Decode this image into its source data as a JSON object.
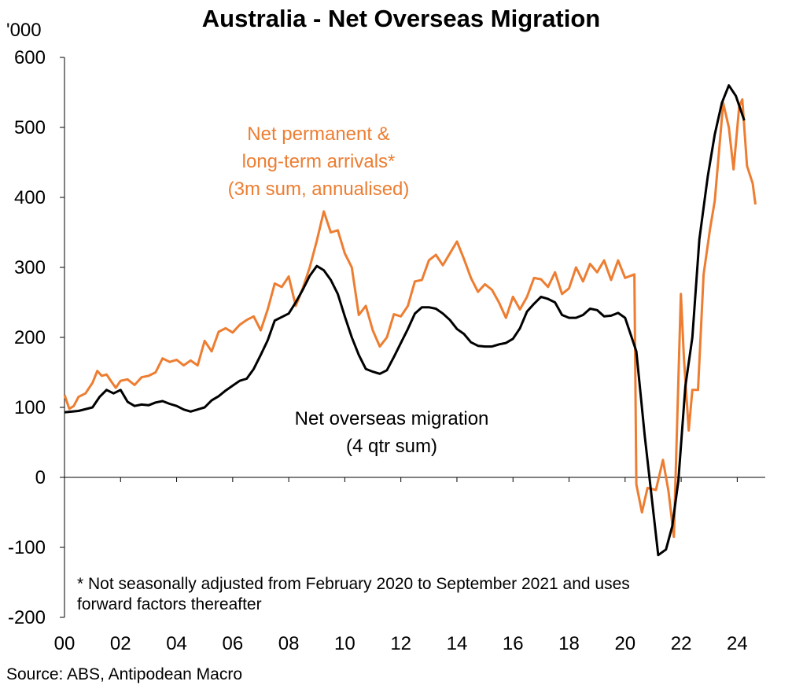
{
  "chart_data": {
    "type": "line",
    "title": "Australia - Net Overseas Migration",
    "y_axis_label": "'000",
    "xlim": [
      2000,
      2025
    ],
    "xticks": [
      {
        "value": 2000,
        "label": "00"
      },
      {
        "value": 2002,
        "label": "02"
      },
      {
        "value": 2004,
        "label": "04"
      },
      {
        "value": 2006,
        "label": "06"
      },
      {
        "value": 2008,
        "label": "08"
      },
      {
        "value": 2010,
        "label": "10"
      },
      {
        "value": 2012,
        "label": "12"
      },
      {
        "value": 2014,
        "label": "14"
      },
      {
        "value": 2016,
        "label": "16"
      },
      {
        "value": 2018,
        "label": "18"
      },
      {
        "value": 2020,
        "label": "20"
      },
      {
        "value": 2022,
        "label": "22"
      },
      {
        "value": 2024,
        "label": "24"
      }
    ],
    "ylim": [
      -200,
      600
    ],
    "yticks": [
      -200,
      -100,
      0,
      100,
      200,
      300,
      400,
      500,
      600
    ],
    "grid": false,
    "series": [
      {
        "name": "Net permanent & long-term arrivals* (3m sum, annualised)",
        "label_lines": [
          "Net permanent &",
          "long-term arrivals*",
          "(3m sum, annualised)"
        ],
        "color": "#ed7d31",
        "x": [
          2000.0,
          2000.17,
          2000.33,
          2000.5,
          2000.75,
          2001.0,
          2001.17,
          2001.33,
          2001.5,
          2001.67,
          2001.83,
          2002.0,
          2002.25,
          2002.5,
          2002.75,
          2003.0,
          2003.25,
          2003.5,
          2003.75,
          2004.0,
          2004.25,
          2004.5,
          2004.75,
          2005.0,
          2005.25,
          2005.5,
          2005.75,
          2006.0,
          2006.25,
          2006.5,
          2006.75,
          2007.0,
          2007.25,
          2007.5,
          2007.75,
          2008.0,
          2008.25,
          2008.5,
          2008.75,
          2009.0,
          2009.25,
          2009.5,
          2009.75,
          2010.0,
          2010.25,
          2010.5,
          2010.75,
          2011.0,
          2011.25,
          2011.5,
          2011.75,
          2012.0,
          2012.25,
          2012.5,
          2012.75,
          2013.0,
          2013.25,
          2013.5,
          2013.75,
          2014.0,
          2014.25,
          2014.5,
          2014.75,
          2015.0,
          2015.25,
          2015.5,
          2015.75,
          2016.0,
          2016.25,
          2016.5,
          2016.75,
          2017.0,
          2017.25,
          2017.5,
          2017.75,
          2018.0,
          2018.25,
          2018.5,
          2018.75,
          2019.0,
          2019.25,
          2019.5,
          2019.75,
          2020.0,
          2020.33,
          2020.4,
          2020.6,
          2020.8,
          2021.1,
          2021.35,
          2021.55,
          2021.74,
          2021.99,
          2022.1,
          2022.27,
          2022.4,
          2022.6,
          2022.8,
          2023.03,
          2023.2,
          2023.5,
          2023.7,
          2023.87,
          2024.07,
          2024.18,
          2024.35,
          2024.55,
          2024.65
        ],
        "values": [
          118,
          98,
          102,
          115,
          120,
          135,
          152,
          145,
          147,
          137,
          128,
          138,
          140,
          132,
          143,
          145,
          150,
          170,
          165,
          168,
          160,
          167,
          160,
          195,
          180,
          208,
          213,
          207,
          218,
          225,
          230,
          210,
          240,
          277,
          272,
          287,
          245,
          270,
          300,
          338,
          380,
          350,
          353,
          320,
          300,
          232,
          245,
          210,
          187,
          200,
          233,
          230,
          245,
          280,
          282,
          310,
          318,
          303,
          320,
          337,
          312,
          285,
          265,
          276,
          268,
          250,
          228,
          258,
          240,
          258,
          285,
          283,
          272,
          293,
          262,
          270,
          300,
          280,
          305,
          293,
          310,
          282,
          310,
          285,
          290,
          -10,
          -50,
          -15,
          -18,
          25,
          -20,
          -85,
          262,
          170,
          67,
          125,
          125,
          290,
          355,
          395,
          535,
          500,
          440,
          530,
          540,
          445,
          420,
          390
        ]
      },
      {
        "name": "Net overseas migration (4 qtr sum)",
        "label_lines": [
          "Net overseas migration",
          "(4 qtr sum)"
        ],
        "color": "#000000",
        "x": [
          2000.0,
          2000.5,
          2001.0,
          2001.25,
          2001.5,
          2001.75,
          2002.0,
          2002.25,
          2002.5,
          2002.75,
          2003.0,
          2003.25,
          2003.5,
          2003.75,
          2004.0,
          2004.25,
          2004.5,
          2005.0,
          2005.25,
          2005.5,
          2005.75,
          2006.0,
          2006.25,
          2006.5,
          2006.75,
          2007.0,
          2007.25,
          2007.5,
          2008.0,
          2008.25,
          2008.5,
          2008.75,
          2009.0,
          2009.25,
          2009.5,
          2009.75,
          2010.0,
          2010.25,
          2010.5,
          2010.75,
          2011.0,
          2011.25,
          2011.5,
          2011.75,
          2012.0,
          2012.25,
          2012.5,
          2012.75,
          2013.0,
          2013.25,
          2013.5,
          2013.75,
          2014.0,
          2014.25,
          2014.5,
          2014.75,
          2015.0,
          2015.25,
          2015.5,
          2015.75,
          2016.0,
          2016.25,
          2016.5,
          2016.75,
          2017.0,
          2017.25,
          2017.5,
          2017.75,
          2018.0,
          2018.25,
          2018.5,
          2018.75,
          2019.0,
          2019.25,
          2019.5,
          2019.75,
          2020.0,
          2020.4,
          2020.7,
          2021.18,
          2021.46,
          2021.68,
          2021.9,
          2022.15,
          2022.4,
          2022.65,
          2022.95,
          2023.2,
          2023.45,
          2023.7,
          2023.95,
          2024.25
        ],
        "values": [
          93,
          95,
          100,
          115,
          125,
          120,
          125,
          108,
          102,
          104,
          103,
          107,
          109,
          105,
          102,
          97,
          94,
          100,
          110,
          116,
          124,
          131,
          138,
          141,
          155,
          175,
          196,
          224,
          234,
          250,
          268,
          288,
          302,
          296,
          282,
          262,
          230,
          200,
          175,
          155,
          151,
          148,
          153,
          172,
          192,
          212,
          234,
          243,
          243,
          241,
          234,
          225,
          212,
          205,
          193,
          188,
          187,
          187,
          190,
          192,
          198,
          213,
          237,
          248,
          258,
          255,
          250,
          232,
          228,
          228,
          232,
          241,
          239,
          230,
          231,
          235,
          228,
          180,
          60,
          -111,
          -103,
          -70,
          -5,
          130,
          200,
          340,
          430,
          490,
          535,
          560,
          545,
          510
        ]
      }
    ],
    "footnote": [
      "* Not seasonally adjusted from February 2020 to September 2021 and uses",
      "forward factors thereafter"
    ],
    "source": "Source: ABS, Antipodean Macro"
  }
}
